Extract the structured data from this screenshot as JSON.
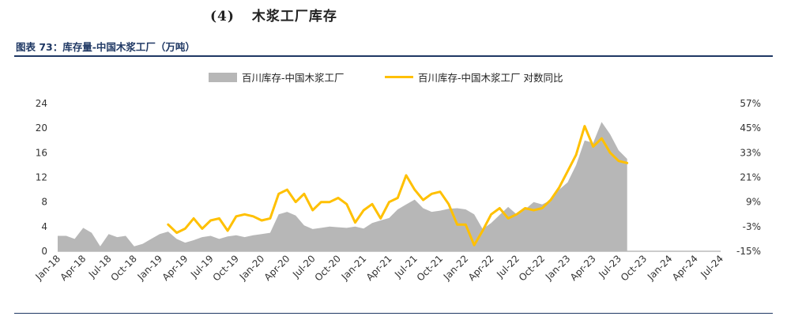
{
  "section": {
    "number": "(4)",
    "title": "木浆工厂库存"
  },
  "figure": {
    "title": "图表 73：库存量-中国木浆工厂（万吨）"
  },
  "colors": {
    "area": "#b7b7b7",
    "line": "#ffc000",
    "accent": "#1f3864"
  },
  "chart_data": {
    "type": "area",
    "title": "",
    "legend": {
      "placement": "top-center",
      "entries": [
        "百川库存-中国木浆工厂",
        "百川库存-中国木浆工厂 对数同比"
      ]
    },
    "x_tick_labels": [
      "Jan-18",
      "Apr-18",
      "Jul-18",
      "Oct-18",
      "Jan-19",
      "Apr-19",
      "Jul-19",
      "Oct-19",
      "Jan-20",
      "Apr-20",
      "Jul-20",
      "Oct-20",
      "Jan-21",
      "Apr-21",
      "Jul-21",
      "Oct-21",
      "Jan-22",
      "Apr-22",
      "Jul-22",
      "Oct-22",
      "Jan-23",
      "Apr-23",
      "Jul-23",
      "Oct-23",
      "Jan-24",
      "Apr-24",
      "Jul-24"
    ],
    "x_range": [
      "2018-01",
      "2024-07"
    ],
    "y_left": {
      "ylim": [
        0,
        24
      ],
      "ticks": [
        "0",
        "4",
        "8",
        "12",
        "16",
        "20",
        "24"
      ]
    },
    "y_right": {
      "ylim": [
        -15,
        57
      ],
      "ticks": [
        "-15%",
        "-3%",
        "9%",
        "21%",
        "33%",
        "45%",
        "57%"
      ]
    },
    "grid": false,
    "series": [
      {
        "name": "百川库存-中国木浆工厂",
        "type": "area",
        "axis": "left",
        "x": [
          "2018-01",
          "2018-02",
          "2018-03",
          "2018-04",
          "2018-05",
          "2018-06",
          "2018-07",
          "2018-08",
          "2018-09",
          "2018-10",
          "2018-11",
          "2018-12",
          "2019-01",
          "2019-02",
          "2019-03",
          "2019-04",
          "2019-05",
          "2019-06",
          "2019-07",
          "2019-08",
          "2019-09",
          "2019-10",
          "2019-11",
          "2019-12",
          "2020-01",
          "2020-02",
          "2020-03",
          "2020-04",
          "2020-05",
          "2020-06",
          "2020-07",
          "2020-08",
          "2020-09",
          "2020-10",
          "2020-11",
          "2020-12",
          "2021-01",
          "2021-02",
          "2021-03",
          "2021-04",
          "2021-05",
          "2021-06",
          "2021-07",
          "2021-08",
          "2021-09",
          "2021-10",
          "2021-11",
          "2021-12",
          "2022-01",
          "2022-02",
          "2022-03",
          "2022-04",
          "2022-05",
          "2022-06",
          "2022-07",
          "2022-08",
          "2022-09",
          "2022-10",
          "2022-11",
          "2022-12",
          "2023-01",
          "2023-02",
          "2023-03",
          "2023-04",
          "2023-05",
          "2023-06",
          "2023-07",
          "2023-08"
        ],
        "values": [
          2.5,
          2.5,
          2.0,
          3.8,
          3.0,
          0.8,
          2.8,
          2.3,
          2.5,
          0.8,
          1.2,
          2.0,
          2.8,
          3.2,
          2.0,
          1.4,
          1.8,
          2.3,
          2.5,
          2.0,
          2.4,
          2.6,
          2.3,
          2.6,
          2.8,
          3.0,
          6.0,
          6.4,
          5.8,
          4.2,
          3.6,
          3.8,
          4.0,
          3.9,
          3.8,
          4.0,
          3.7,
          4.6,
          5.0,
          5.4,
          6.8,
          7.6,
          8.4,
          7.0,
          6.4,
          6.6,
          6.9,
          7.0,
          6.8,
          6.0,
          3.6,
          4.6,
          5.9,
          7.2,
          6.0,
          6.8,
          8.0,
          7.6,
          8.3,
          10.0,
          11.2,
          14.0,
          18.0,
          17.6,
          21.0,
          19.0,
          16.4,
          15.0
        ]
      },
      {
        "name": "百川库存-中国木浆工厂 对数同比",
        "type": "line",
        "axis": "right",
        "x": [
          "2019-02",
          "2019-03",
          "2019-04",
          "2019-05",
          "2019-06",
          "2019-07",
          "2019-08",
          "2019-09",
          "2019-10",
          "2019-11",
          "2019-12",
          "2020-01",
          "2020-02",
          "2020-03",
          "2020-04",
          "2020-05",
          "2020-06",
          "2020-07",
          "2020-08",
          "2020-09",
          "2020-10",
          "2020-11",
          "2020-12",
          "2021-01",
          "2021-02",
          "2021-03",
          "2021-04",
          "2021-05",
          "2021-06",
          "2021-07",
          "2021-08",
          "2021-09",
          "2021-10",
          "2021-11",
          "2021-12",
          "2022-01",
          "2022-02",
          "2022-03",
          "2022-04",
          "2022-05",
          "2022-06",
          "2022-07",
          "2022-08",
          "2022-09",
          "2022-10",
          "2022-11",
          "2022-12",
          "2023-01",
          "2023-02",
          "2023-03",
          "2023-04",
          "2023-05",
          "2023-06",
          "2023-07",
          "2023-08"
        ],
        "values": [
          -2,
          -6,
          -4,
          1,
          -4,
          0,
          1,
          -5,
          2,
          3,
          2,
          0,
          1,
          13,
          15,
          9,
          13,
          5,
          9,
          9,
          11,
          8,
          -1,
          5,
          8,
          1,
          9,
          11,
          22,
          15,
          10,
          13,
          14,
          8,
          -2,
          -2,
          -12,
          -5,
          3,
          6,
          1,
          3,
          6,
          5,
          6,
          10,
          16,
          24,
          32,
          46,
          36,
          40,
          33,
          29,
          28
        ]
      }
    ]
  }
}
